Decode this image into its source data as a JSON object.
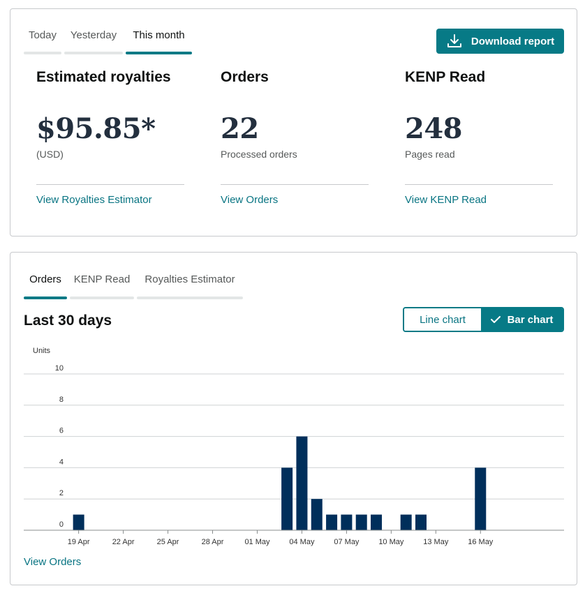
{
  "summary": {
    "tabs": [
      {
        "label": "Today",
        "active": false
      },
      {
        "label": "Yesterday",
        "active": false
      },
      {
        "label": "This month",
        "active": true
      }
    ],
    "download_label": "Download report",
    "metrics": [
      {
        "title": "Estimated royalties",
        "value": "$95.85*",
        "sub": "(USD)",
        "link": "View Royalties Estimator"
      },
      {
        "title": "Orders",
        "value": "22",
        "sub": "Processed orders",
        "link": "View Orders"
      },
      {
        "title": "KENP Read",
        "value": "248",
        "sub": "Pages read",
        "link": "View KENP Read"
      }
    ]
  },
  "chart_panel": {
    "tabs": [
      {
        "label": "Orders",
        "active": true
      },
      {
        "label": "KENP Read",
        "active": false
      },
      {
        "label": "Royalties Estimator",
        "active": false
      }
    ],
    "title": "Last 30 days",
    "toggle": {
      "line_label": "Line chart",
      "bar_label": "Bar chart",
      "selected": "bar"
    },
    "bottom_link": "View Orders"
  },
  "colors": {
    "accent": "#077a86",
    "bar": "#002f5b",
    "link": "#087482"
  },
  "chart_data": {
    "type": "bar",
    "ylabel": "Units",
    "ylim": [
      0,
      10
    ],
    "yticks": [
      0,
      2,
      4,
      6,
      8,
      10
    ],
    "grid": true,
    "x_tick_labels": [
      "19 Apr",
      "22 Apr",
      "25 Apr",
      "28 Apr",
      "01 May",
      "04 May",
      "07 May",
      "10 May",
      "13 May",
      "16 May"
    ],
    "categories": [
      "17 Apr",
      "18 Apr",
      "19 Apr",
      "20 Apr",
      "21 Apr",
      "22 Apr",
      "23 Apr",
      "24 Apr",
      "25 Apr",
      "26 Apr",
      "27 Apr",
      "28 Apr",
      "29 Apr",
      "30 Apr",
      "01 May",
      "02 May",
      "03 May",
      "04 May",
      "05 May",
      "06 May",
      "07 May",
      "08 May",
      "09 May",
      "10 May",
      "11 May",
      "12 May",
      "13 May",
      "14 May",
      "15 May",
      "16 May",
      "17 May"
    ],
    "values": [
      0,
      0,
      1,
      0,
      0,
      0,
      0,
      0,
      0,
      0,
      0,
      0,
      0,
      0,
      0,
      0,
      4,
      6,
      2,
      1,
      1,
      1,
      1,
      0,
      1,
      1,
      0,
      0,
      0,
      4,
      0
    ]
  }
}
